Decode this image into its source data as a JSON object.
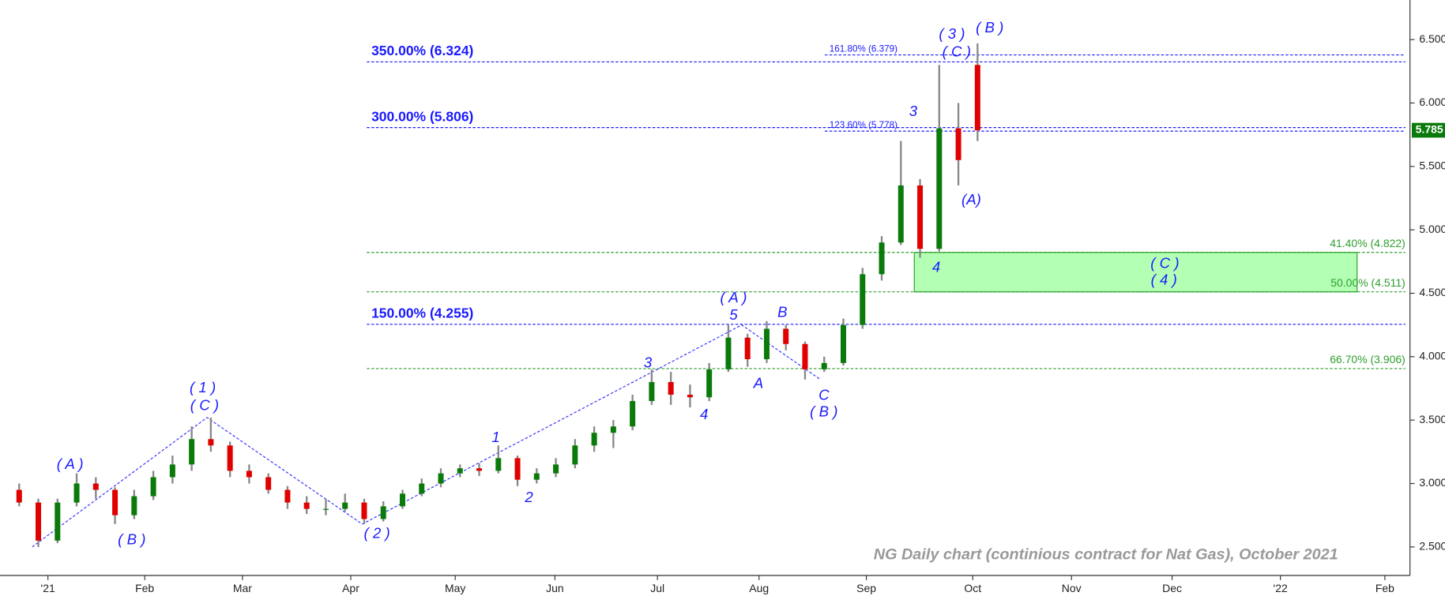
{
  "chart_data": {
    "type": "candlestick",
    "caption": "NG Daily chart (continious contract for Nat Gas), October 2021",
    "open": [
      2.95,
      2.85,
      2.55,
      2.85,
      3.0,
      2.95,
      2.75,
      2.9,
      3.05,
      3.15,
      3.35,
      3.3,
      3.1,
      3.05,
      2.95,
      2.85,
      2.8,
      2.8,
      2.85,
      2.72,
      2.82,
      2.92,
      3.0,
      3.08,
      3.12,
      3.1,
      3.2,
      3.03,
      3.08,
      3.15,
      3.3,
      3.4,
      3.45,
      3.65,
      3.8,
      3.7,
      3.68,
      3.9,
      4.15,
      3.98,
      4.22,
      4.1,
      3.9,
      3.95,
      4.25,
      4.65,
      4.9,
      5.35,
      4.85,
      5.8,
      6.3
    ],
    "high": [
      3.0,
      2.88,
      2.88,
      3.08,
      3.05,
      2.97,
      2.95,
      3.1,
      3.22,
      3.45,
      3.52,
      3.33,
      3.15,
      3.08,
      2.98,
      2.9,
      2.88,
      2.92,
      2.88,
      2.86,
      2.95,
      3.04,
      3.12,
      3.15,
      3.16,
      3.3,
      3.22,
      3.12,
      3.2,
      3.35,
      3.45,
      3.5,
      3.7,
      3.9,
      3.88,
      3.78,
      3.95,
      4.25,
      4.18,
      4.28,
      4.25,
      4.12,
      4.0,
      4.3,
      4.7,
      4.95,
      5.7,
      5.4,
      6.3,
      6.0,
      6.47
    ],
    "low": [
      2.82,
      2.5,
      2.53,
      2.82,
      2.88,
      2.68,
      2.72,
      2.87,
      3.0,
      3.1,
      3.25,
      3.05,
      3.0,
      2.92,
      2.8,
      2.76,
      2.75,
      2.78,
      2.68,
      2.7,
      2.8,
      2.9,
      2.97,
      3.05,
      3.06,
      3.08,
      2.98,
      3.0,
      3.05,
      3.12,
      3.25,
      3.28,
      3.42,
      3.62,
      3.62,
      3.6,
      3.65,
      3.88,
      3.92,
      3.95,
      4.05,
      3.82,
      3.88,
      3.93,
      4.22,
      4.6,
      4.88,
      4.78,
      4.83,
      5.35,
      5.7
    ],
    "close": [
      2.85,
      2.55,
      2.85,
      3.0,
      2.95,
      2.75,
      2.9,
      3.05,
      3.15,
      3.35,
      3.3,
      3.1,
      3.05,
      2.95,
      2.85,
      2.8,
      2.8,
      2.85,
      2.72,
      2.82,
      2.92,
      3.0,
      3.08,
      3.12,
      3.1,
      3.2,
      3.03,
      3.08,
      3.15,
      3.3,
      3.4,
      3.45,
      3.65,
      3.8,
      3.7,
      3.68,
      3.9,
      4.15,
      3.98,
      4.22,
      4.1,
      3.9,
      3.95,
      4.25,
      4.65,
      4.9,
      5.35,
      4.85,
      5.8,
      5.55,
      5.785
    ],
    "up_color": "#0a7a0a",
    "down_color": "#e00000",
    "wick_color": "#888888",
    "xlim": [
      -1,
      72.56
    ],
    "xticks": [
      {
        "value": 1.5,
        "label": "'21"
      },
      {
        "value": 6.55,
        "label": "Feb"
      },
      {
        "value": 11.65,
        "label": "Mar"
      },
      {
        "value": 17.3,
        "label": "Apr"
      },
      {
        "value": 22.75,
        "label": "May"
      },
      {
        "value": 27.95,
        "label": "Jun"
      },
      {
        "value": 33.3,
        "label": "Jul"
      },
      {
        "value": 38.6,
        "label": "Aug"
      },
      {
        "value": 44.2,
        "label": "Sep"
      },
      {
        "value": 49.75,
        "label": "Oct"
      },
      {
        "value": 54.9,
        "label": "Nov"
      },
      {
        "value": 60.15,
        "label": "Dec"
      },
      {
        "value": 65.8,
        "label": "'22"
      },
      {
        "value": 71.25,
        "label": "Feb"
      }
    ],
    "ylim": [
      2.275,
      6.812
    ],
    "yticks": [
      {
        "value": 2.5,
        "label": "2.500"
      },
      {
        "value": 3,
        "label": "3.000"
      },
      {
        "value": 3.5,
        "label": "3.500"
      },
      {
        "value": 4,
        "label": "4.000"
      },
      {
        "value": 4.5,
        "label": "4.500"
      },
      {
        "value": 5,
        "label": "5.000"
      },
      {
        "value": 5.5,
        "label": "5.500"
      },
      {
        "value": 6,
        "label": "6.000"
      },
      {
        "value": 6.5,
        "label": "6.500"
      }
    ],
    "levels": [
      {
        "value": 6.379,
        "label": "161.80% (6.379)",
        "color": "#1a1aff",
        "label_position": "center"
      },
      {
        "value": 6.324,
        "label": "350.00% (6.324)",
        "color": "#1a1aff",
        "label_position": "left"
      },
      {
        "value": 5.806,
        "label": "300.00% (5.806)",
        "color": "#1a1aff",
        "label_position": "left"
      },
      {
        "value": 5.778,
        "label": "123.60% (5.778)",
        "color": "#1a1aff",
        "label_position": "center"
      },
      {
        "value": 4.822,
        "label": "41.40% (4.822)",
        "color": "#2e9e2e",
        "label_position": "right"
      },
      {
        "value": 4.511,
        "label": "50.00% (4.511)",
        "color": "#2e9e2e",
        "label_position": "right"
      },
      {
        "value": 4.255,
        "label": "150.00% (4.255)",
        "color": "#1a1aff",
        "label_position": "left"
      },
      {
        "value": 3.906,
        "label": "66.70% (3.906)",
        "color": "#2e9e2e",
        "label_position": "right"
      }
    ],
    "zone": {
      "x": [
        46.7,
        69.8
      ],
      "y": [
        4.511,
        4.822
      ],
      "color": "#b3ffb3"
    },
    "wave_line": {
      "x": [
        0.68,
        9.8,
        17.9,
        37.7,
        41.8
      ],
      "y": [
        2.5,
        3.52,
        2.68,
        4.25,
        3.82
      ],
      "color": "#3333ff"
    },
    "annotations": [
      "( A )",
      "( B )",
      "( 1 )",
      "( C )",
      "( 2 )",
      "1",
      "2",
      "3",
      "4",
      "( A )",
      "5",
      "A",
      "B",
      "C",
      "( B )",
      "3",
      "4",
      "(A)",
      "( 3 )",
      "( C )",
      "( B )",
      "( C )",
      "( 4 )"
    ]
  }
}
